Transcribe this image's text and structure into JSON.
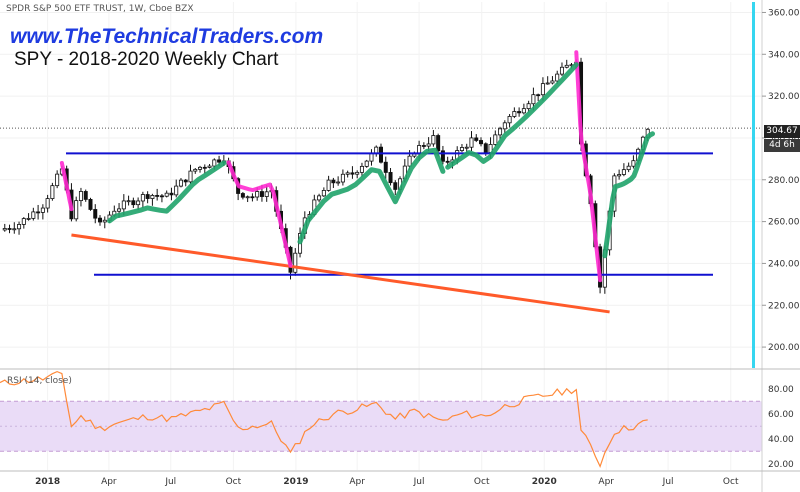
{
  "header": {
    "ticker": "SPDR S&P 500 ETF TRUST, 1W, Cboe BZX",
    "site": "www.TheTechnicalTraders.com",
    "title": "SPY - 2018-2020 Weekly Chart"
  },
  "rsi_panel": {
    "label": "RSI (14, close)"
  },
  "price_tag": {
    "value": "304.67",
    "countdown": "4d 6h"
  },
  "colors": {
    "up_candle": "#ffffff",
    "down_candle": "#111111",
    "support_resistance": "#1010d0",
    "trendline": "#ff5a2a",
    "decline_arc": "#ff2ad0",
    "advance_arc": "#1fa36a",
    "cyan_marker": "#35d6f0",
    "rsi_line": "#ff8a3a",
    "rsi_band": "#eadcf7",
    "rsi_band_line": "#c39bd3"
  },
  "chart_data": [
    {
      "type": "candlestick",
      "title": "SPY - 2018-2020 Weekly Chart",
      "y_axis_side": "right",
      "ylim": [
        190,
        365
      ],
      "yticks": [
        200,
        220,
        240,
        260,
        280,
        300,
        320,
        340,
        360
      ],
      "ytick_labels": [
        "200.00",
        "220.00",
        "240.00",
        "260.00",
        "280.00",
        "300.00",
        "320.00",
        "340.00",
        "360.00"
      ],
      "x_tick_labels": [
        "2018",
        "Apr",
        "Jul",
        "Oct",
        "2019",
        "Apr",
        "Jul",
        "Oct",
        "2020",
        "Apr",
        "Jul",
        "Oct"
      ],
      "x_tick_dates": [
        "2018-01-01",
        "2018-04-01",
        "2018-07-01",
        "2018-10-01",
        "2019-01-01",
        "2019-04-01",
        "2019-07-01",
        "2019-10-01",
        "2020-01-01",
        "2020-04-01",
        "2020-07-01",
        "2020-10-01"
      ],
      "xlim": [
        "2017-10-23",
        "2020-11-16"
      ],
      "last_price": 304.67,
      "close_path": [
        [
          "2017-10-23",
          256
        ],
        [
          "2017-11-20",
          259
        ],
        [
          "2017-12-25",
          268
        ],
        [
          "2018-01-22",
          285
        ],
        [
          "2018-02-05",
          263
        ],
        [
          "2018-02-19",
          274
        ],
        [
          "2018-03-19",
          258
        ],
        [
          "2018-04-09",
          266
        ],
        [
          "2018-05-28",
          273
        ],
        [
          "2018-06-25",
          272
        ],
        [
          "2018-08-06",
          285
        ],
        [
          "2018-09-17",
          291
        ],
        [
          "2018-10-08",
          274
        ],
        [
          "2018-10-29",
          272
        ],
        [
          "2018-11-26",
          275
        ],
        [
          "2018-12-24",
          236
        ],
        [
          "2019-01-14",
          262
        ],
        [
          "2019-02-18",
          278
        ],
        [
          "2019-03-25",
          283
        ],
        [
          "2019-04-29",
          294
        ],
        [
          "2019-05-27",
          276
        ],
        [
          "2019-06-24",
          294
        ],
        [
          "2019-07-22",
          300
        ],
        [
          "2019-08-05",
          287
        ],
        [
          "2019-09-16",
          299
        ],
        [
          "2019-10-07",
          294
        ],
        [
          "2019-11-04",
          308
        ],
        [
          "2019-12-16",
          320
        ],
        [
          "2020-01-20",
          330
        ],
        [
          "2020-02-17",
          338
        ],
        [
          "2020-02-24",
          297
        ],
        [
          "2020-03-09",
          270
        ],
        [
          "2020-03-23",
          229
        ],
        [
          "2020-04-13",
          282
        ],
        [
          "2020-05-11",
          288
        ],
        [
          "2020-06-01",
          305
        ]
      ],
      "horizontal_levels": [
        292.6,
        234.6
      ],
      "trendline": [
        [
          "2018-02-05",
          253.6
        ],
        [
          "2020-04-06",
          216.8
        ]
      ],
      "annotations": [
        {
          "type": "arc",
          "color": "decline_arc",
          "meaning": "decline",
          "from": "2018-01-22",
          "to": "2018-02-05"
        },
        {
          "type": "arc",
          "color": "decline_arc",
          "meaning": "decline",
          "from": "2018-09-24",
          "to": "2018-12-24"
        },
        {
          "type": "arc",
          "color": "decline_arc",
          "meaning": "decline",
          "from": "2020-02-17",
          "to": "2020-03-23"
        },
        {
          "type": "arc",
          "color": "advance_arc",
          "meaning": "advance",
          "from": "2018-04-02",
          "to": "2018-09-17"
        },
        {
          "type": "arc",
          "color": "advance_arc",
          "meaning": "advance",
          "from": "2019-01-07",
          "to": "2019-08-05"
        },
        {
          "type": "arc",
          "color": "advance_arc",
          "meaning": "advance",
          "from": "2019-08-12",
          "to": "2020-02-17"
        },
        {
          "type": "arc",
          "color": "advance_arc",
          "meaning": "advance",
          "from": "2020-03-30",
          "to": "2020-06-08"
        }
      ]
    },
    {
      "type": "line",
      "title": "RSI (14, close)",
      "ylim": [
        15,
        95
      ],
      "yticks": [
        20,
        40,
        60,
        80
      ],
      "ytick_labels": [
        "20.00",
        "40.00",
        "60.00",
        "80.00"
      ],
      "bands": [
        30,
        70
      ],
      "x": [
        "2017-10-23",
        "2017-11-20",
        "2017-12-25",
        "2018-01-22",
        "2018-02-05",
        "2018-02-19",
        "2018-03-19",
        "2018-04-09",
        "2018-05-28",
        "2018-07-02",
        "2018-08-13",
        "2018-09-17",
        "2018-10-08",
        "2018-10-29",
        "2018-11-26",
        "2018-12-24",
        "2019-01-21",
        "2019-02-25",
        "2019-04-01",
        "2019-04-29",
        "2019-05-27",
        "2019-06-24",
        "2019-08-05",
        "2019-09-02",
        "2019-10-07",
        "2019-11-04",
        "2019-12-09",
        "2020-01-13",
        "2020-02-17",
        "2020-02-24",
        "2020-03-09",
        "2020-03-23",
        "2020-04-13",
        "2020-05-11",
        "2020-06-01"
      ],
      "values": [
        84,
        86,
        88,
        92,
        50,
        58,
        48,
        52,
        58,
        56,
        62,
        68,
        48,
        50,
        52,
        28,
        50,
        60,
        64,
        68,
        56,
        62,
        54,
        60,
        58,
        66,
        72,
        76,
        80,
        46,
        34,
        20,
        46,
        50,
        54
      ]
    }
  ]
}
